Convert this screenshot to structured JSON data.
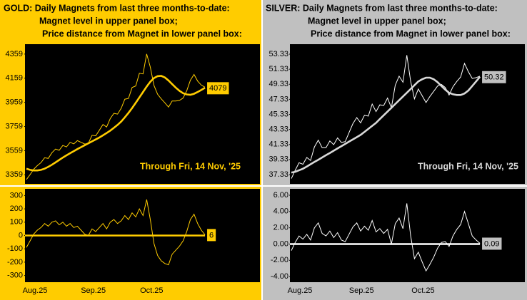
{
  "chart_data": [
    {
      "type": "line",
      "title_lines": [
        "GOLD:  Daily Magnets from last three months-to-date:",
        "Magnet level in upper panel box;",
        "Price distance from Magnet in lower panel box:"
      ],
      "annotation": "Through Fri, 14 Nov, '25",
      "ylim": [
        3290,
        4435
      ],
      "yticks": [
        3359,
        3559,
        3759,
        3959,
        4159,
        4359
      ],
      "series": [
        {
          "color": "#ffcc00",
          "values": [
            3320,
            3360,
            3405,
            3435,
            3460,
            3500,
            3495,
            3542,
            3572,
            3562,
            3602,
            3590,
            3628,
            3615,
            3642,
            3628,
            3614,
            3620,
            3686,
            3682,
            3728,
            3776,
            3755,
            3825,
            3868,
            3862,
            3910,
            3985,
            3992,
            4082,
            4095,
            4200,
            4195,
            4360,
            4250,
            4100,
            4026,
            3988,
            3955,
            3920,
            3970,
            3970,
            3975,
            3995,
            4055,
            4142,
            4190,
            4135,
            4102,
            4085
          ]
        },
        {
          "color": "#ffcc00",
          "values": [
            3410,
            3400,
            3395,
            3395,
            3400,
            3410,
            3425,
            3442,
            3462,
            3482,
            3502,
            3520,
            3538,
            3555,
            3572,
            3588,
            3604,
            3620,
            3636,
            3652,
            3668,
            3686,
            3705,
            3725,
            3748,
            3772,
            3800,
            3835,
            3872,
            3912,
            3955,
            4000,
            4045,
            4090,
            4130,
            4160,
            4176,
            4178,
            4165,
            4140,
            4110,
            4080,
            4055,
            4035,
            4025,
            4022,
            4030,
            4045,
            4062,
            4079
          ]
        }
      ]
    },
    {
      "type": "line",
      "categories": [
        "Aug.25",
        null,
        null,
        null,
        null,
        null,
        null,
        null,
        null,
        null,
        null,
        null,
        null,
        null,
        null,
        null,
        "Sep.25",
        null,
        null,
        null,
        null,
        null,
        null,
        null,
        null,
        null,
        null,
        null,
        null,
        null,
        null,
        null,
        "Oct.25",
        null,
        null,
        null,
        null,
        null,
        null,
        null,
        null,
        null,
        null,
        null,
        null,
        null,
        null,
        null,
        null,
        null
      ],
      "ylim": [
        -345,
        345
      ],
      "yticks": [
        -300,
        -200,
        -100,
        0,
        100,
        200,
        300
      ],
      "series": [
        {
          "color": "#ffcc00",
          "values": [
            -90,
            -40,
            10,
            40,
            60,
            90,
            70,
            100,
            110,
            80,
            100,
            70,
            90,
            60,
            70,
            40,
            10,
            0,
            50,
            30,
            60,
            90,
            50,
            100,
            120,
            90,
            110,
            150,
            120,
            170,
            140,
            200,
            150,
            270,
            120,
            -60,
            -150,
            -190,
            -210,
            -220,
            -140,
            -110,
            -80,
            -40,
            30,
            120,
            160,
            90,
            40,
            6
          ]
        }
      ]
    },
    {
      "type": "line",
      "title_lines": [
        "SILVER:  Daily Magnets from last three months-to-date:",
        "Magnet level in upper panel box;",
        "Price distance from Magnet in lower panel box:"
      ],
      "annotation": "Through Fri, 14 Nov, '25",
      "ylim": [
        36.19,
        54.56
      ],
      "yticks": [
        37.33,
        39.33,
        41.33,
        43.33,
        45.33,
        47.33,
        49.33,
        51.33,
        53.33
      ],
      "series": [
        {
          "color": "#ffffff",
          "values": [
            36.8,
            37.9,
            38.9,
            38.7,
            39.6,
            39.2,
            41.0,
            41.9,
            40.9,
            40.9,
            41.8,
            41.3,
            42.2,
            41.6,
            41.7,
            42.9,
            44.1,
            44.9,
            44.2,
            45.2,
            45.1,
            46.7,
            45.7,
            46.6,
            46.5,
            47.5,
            46.2,
            49.2,
            50.4,
            49.6,
            53.2,
            49.7,
            47.4,
            48.7,
            47.8,
            46.9,
            47.7,
            48.4,
            49.1,
            49.3,
            48.9,
            47.9,
            49.0,
            49.7,
            50.3,
            52.1,
            51.0,
            50.1,
            50.2,
            50.41
          ]
        },
        {
          "color": "#d9d9d9",
          "values": [
            37.6,
            37.7,
            37.9,
            38.1,
            38.4,
            38.7,
            39.0,
            39.3,
            39.6,
            39.9,
            40.2,
            40.5,
            40.8,
            41.1,
            41.4,
            41.7,
            42.0,
            42.3,
            42.6,
            43.0,
            43.4,
            43.8,
            44.2,
            44.7,
            45.2,
            45.7,
            46.2,
            46.7,
            47.2,
            47.7,
            48.2,
            48.7,
            49.2,
            49.7,
            50.0,
            50.2,
            50.2,
            50.0,
            49.6,
            49.1,
            48.6,
            48.2,
            48.0,
            47.9,
            47.9,
            48.1,
            48.5,
            49.1,
            49.7,
            50.32
          ]
        }
      ]
    },
    {
      "type": "line",
      "categories": [
        "Aug.25",
        null,
        null,
        null,
        null,
        null,
        null,
        null,
        null,
        null,
        null,
        null,
        null,
        null,
        null,
        null,
        "Sep.25",
        null,
        null,
        null,
        null,
        null,
        null,
        null,
        null,
        null,
        null,
        null,
        null,
        null,
        null,
        null,
        "Oct.25",
        null,
        null,
        null,
        null,
        null,
        null,
        null,
        null,
        null,
        null,
        null,
        null,
        null,
        null,
        null,
        null,
        null
      ],
      "ylim": [
        -4.6,
        6.7
      ],
      "yticks": [
        {
          "value": -4,
          "label": "-4.00"
        },
        {
          "value": -2,
          "label": "-2.00"
        },
        {
          "value": 0,
          "label": "0.00"
        },
        {
          "value": 2,
          "label": "2.00"
        },
        {
          "value": 4,
          "label": "4.00"
        },
        {
          "value": 6,
          "label": "6.00"
        }
      ],
      "series": [
        {
          "color": "#ffffff",
          "values": [
            -0.8,
            0.2,
            1.0,
            0.6,
            1.2,
            0.5,
            2.0,
            2.6,
            1.3,
            1.0,
            1.6,
            0.8,
            1.4,
            0.5,
            0.3,
            1.2,
            2.1,
            2.6,
            1.6,
            2.2,
            1.7,
            2.9,
            1.5,
            1.9,
            1.3,
            1.8,
            0.0,
            2.5,
            3.2,
            1.9,
            5.0,
            1.0,
            -1.8,
            -1.0,
            -2.2,
            -3.3,
            -2.5,
            -1.6,
            -0.5,
            0.2,
            0.3,
            -0.3,
            1.0,
            1.8,
            2.4,
            4.0,
            2.5,
            1.0,
            0.5,
            0.09
          ]
        }
      ]
    }
  ]
}
